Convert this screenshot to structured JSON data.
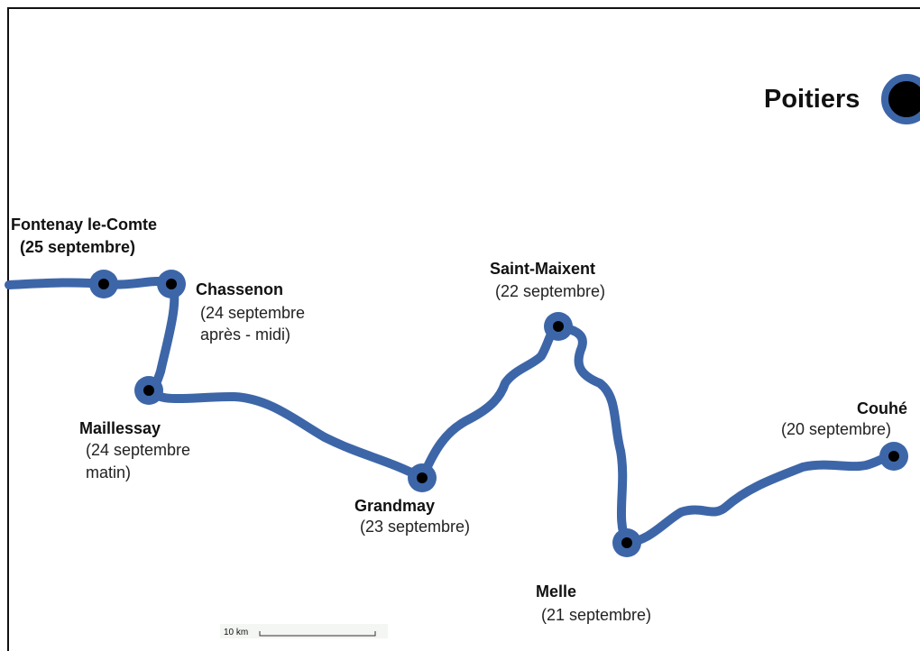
{
  "places": [
    {
      "name": "Poitiers"
    },
    {
      "name": "Fontenay le-Comte",
      "date": [
        "(25 septembre)"
      ]
    },
    {
      "name": "Chassenon",
      "date": [
        "(24 septembre",
        "après - midi)"
      ]
    },
    {
      "name": "Maillessay",
      "date": [
        "(24 septembre",
        "matin)"
      ]
    },
    {
      "name": "Grandmay",
      "date": [
        "(23 septembre)"
      ]
    },
    {
      "name": "Saint-Maixent",
      "date": [
        "(22 septembre)"
      ]
    },
    {
      "name": "Melle",
      "date": [
        "(21 septembre)"
      ]
    },
    {
      "name": "Couhé",
      "date": [
        "(20 septembre)"
      ]
    }
  ],
  "scale": {
    "label": "10 km"
  }
}
